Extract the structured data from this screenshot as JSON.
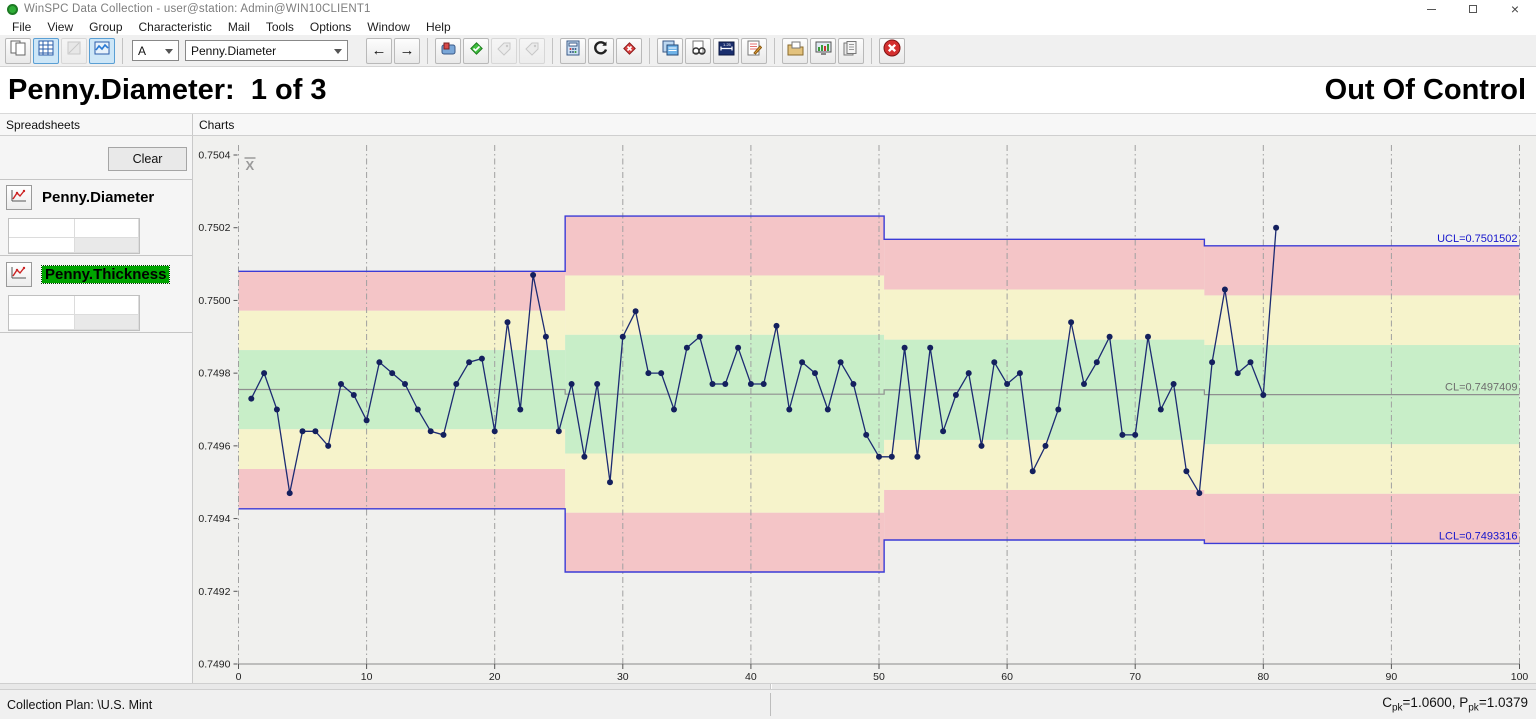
{
  "window": {
    "title": "WinSPC Data Collection - user@station: Admin@WIN10CLIENT1"
  },
  "menu": {
    "items": [
      "File",
      "View",
      "Group",
      "Characteristic",
      "Mail",
      "Tools",
      "Options",
      "Window",
      "Help"
    ]
  },
  "toolbar": {
    "group_combo_value": "A",
    "characteristic_combo_value": "Penny.Diameter",
    "prev_glyph": "←",
    "next_glyph": "→",
    "buttons": [
      {
        "icon": "copy-document-icon",
        "state": "normal"
      },
      {
        "icon": "spreadsheet-view-icon",
        "state": "active"
      },
      {
        "icon": "report-view-icon",
        "state": "disabled"
      },
      {
        "icon": "chart-view-icon",
        "state": "active"
      },
      {
        "icon": "mail-icon",
        "state": "normal"
      },
      {
        "icon": "approve-tag-icon",
        "state": "normal"
      },
      {
        "icon": "tag-icon",
        "state": "disabled"
      },
      {
        "icon": "tag-alt-icon",
        "state": "disabled"
      },
      {
        "icon": "calculator-icon",
        "state": "normal"
      },
      {
        "icon": "refresh-icon",
        "state": "normal"
      },
      {
        "icon": "cancel-diamond-icon",
        "state": "normal"
      },
      {
        "icon": "notes-calendar-icon",
        "state": "normal"
      },
      {
        "icon": "review-notes-icon",
        "state": "normal"
      },
      {
        "icon": "gage-view-icon",
        "state": "normal"
      },
      {
        "icon": "edit-notes-icon",
        "state": "normal"
      },
      {
        "icon": "archive-folder-icon",
        "state": "normal"
      },
      {
        "icon": "monitor-chart-icon",
        "state": "normal"
      },
      {
        "icon": "copy-pages-icon",
        "state": "normal"
      },
      {
        "icon": "stop-collection-icon",
        "state": "normal"
      }
    ]
  },
  "header": {
    "title": "Penny.Diameter:  1 of 3",
    "status": "Out Of Control"
  },
  "panels": {
    "left_caption": "Spreadsheets",
    "right_caption": "Charts"
  },
  "sidebar": {
    "clear_label": "Clear",
    "items": [
      {
        "label": "Penny.Diameter",
        "highlighted": false
      },
      {
        "label": "Penny.Thickness",
        "highlighted": true
      }
    ]
  },
  "chart_data": {
    "type": "line",
    "title": "X-bar control chart",
    "chart_symbol": "X",
    "ylabel": "",
    "xlabel": "",
    "ylim": [
      0.749,
      0.7504
    ],
    "xlim": [
      0,
      100
    ],
    "y_ticks": [
      0.7504,
      0.7502,
      0.75,
      0.7498,
      0.7496,
      0.7494,
      0.7492,
      0.749
    ],
    "x_ticks": [
      0,
      10,
      20,
      30,
      40,
      50,
      60,
      70,
      80,
      90,
      100
    ],
    "grid": "vertical-dash-dot",
    "legend": "none",
    "ucl_label": "UCL=0.7501502",
    "cl_label": "CL=0.7497409",
    "lcl_label": "LCL=0.7493316",
    "segments": [
      {
        "x_start": 0,
        "x_end": 25.5,
        "ucl": 0.75008,
        "cl": 0.749755,
        "lcl": 0.749427
      },
      {
        "x_start": 25.5,
        "x_end": 50.4,
        "ucl": 0.750232,
        "cl": 0.749742,
        "lcl": 0.749253
      },
      {
        "x_start": 50.4,
        "x_end": 75.4,
        "ucl": 0.750168,
        "cl": 0.749754,
        "lcl": 0.749341
      },
      {
        "x_start": 75.4,
        "x_end": 100,
        "ucl": 0.7501502,
        "cl": 0.7497409,
        "lcl": 0.7493316
      }
    ],
    "x": [
      1,
      2,
      3,
      4,
      5,
      6,
      7,
      8,
      9,
      10,
      11,
      12,
      13,
      14,
      15,
      16,
      17,
      18,
      19,
      20,
      21,
      22,
      23,
      24,
      25,
      26,
      27,
      28,
      29,
      30,
      31,
      32,
      33,
      34,
      35,
      36,
      37,
      38,
      39,
      40,
      41,
      42,
      43,
      44,
      45,
      46,
      47,
      48,
      49,
      50,
      51,
      52,
      53,
      54,
      55,
      56,
      57,
      58,
      59,
      60,
      61,
      62,
      63,
      64,
      65,
      66,
      67,
      68,
      69,
      70,
      71,
      72,
      73,
      74,
      75,
      76,
      77,
      78,
      79,
      80,
      81
    ],
    "values": [
      0.74973,
      0.7498,
      0.7497,
      0.74947,
      0.74964,
      0.74964,
      0.7496,
      0.74977,
      0.74974,
      0.74967,
      0.74983,
      0.7498,
      0.74977,
      0.7497,
      0.74964,
      0.74963,
      0.74977,
      0.74983,
      0.74984,
      0.74964,
      0.74994,
      0.7497,
      0.75007,
      0.7499,
      0.74964,
      0.74977,
      0.74957,
      0.74977,
      0.7495,
      0.7499,
      0.74997,
      0.7498,
      0.7498,
      0.7497,
      0.74987,
      0.7499,
      0.74977,
      0.74977,
      0.74987,
      0.74977,
      0.74977,
      0.74993,
      0.7497,
      0.74983,
      0.7498,
      0.7497,
      0.74983,
      0.74977,
      0.74963,
      0.74957,
      0.74957,
      0.74987,
      0.74957,
      0.74987,
      0.74964,
      0.74974,
      0.7498,
      0.7496,
      0.74983,
      0.74977,
      0.7498,
      0.74953,
      0.7496,
      0.7497,
      0.74994,
      0.74977,
      0.74983,
      0.7499,
      0.74963,
      0.74963,
      0.7499,
      0.7497,
      0.74977,
      0.74953,
      0.74947,
      0.74983,
      0.75003,
      0.7498,
      0.74983,
      0.74974,
      0.7502
    ],
    "zone_colors": {
      "red": "#f4c5c7",
      "yellow": "#f6f3cb",
      "green": "#c8eec8"
    },
    "plot_bg": "#f0f0ee",
    "line_color": "#1c2b72",
    "point_color": "#14205e",
    "limit_color": "#3b3bd6",
    "limit_label_color": "#1515cc",
    "cl_color": "#8f8f8f",
    "out_of_control_note": "last point above UCL"
  },
  "status_bar": {
    "left": "Collection Plan: \\U.S. Mint",
    "cpk_name": "C",
    "cpk_sub": "pk",
    "cpk_rest": "=1.0600, ",
    "ppk_name": "P",
    "ppk_sub": "pk",
    "ppk_rest": "=1.0379"
  }
}
